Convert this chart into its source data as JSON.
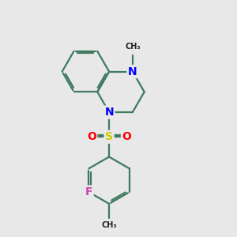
{
  "bg_color": "#e8e8e8",
  "bond_color": "#3d7a5f",
  "bond_width": 1.6,
  "N_color": "#0000ff",
  "S_color": "#cccc00",
  "O_color": "#ff0000",
  "F_color": "#cc44aa",
  "text_color": "#222222",
  "font_size": 10,
  "figsize": [
    3.0,
    3.0
  ],
  "dpi": 100,
  "xlim": [
    0,
    10
  ],
  "ylim": [
    0,
    10
  ]
}
